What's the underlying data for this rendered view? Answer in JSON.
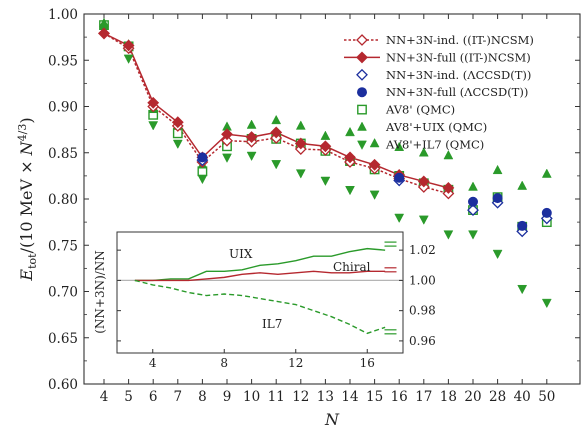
{
  "chart_data": {
    "type": "scatter",
    "xlabel": "N",
    "ylabel": "E_tot/(10 MeV × N^{4/3})",
    "x_tick_labels": [
      "4",
      "5",
      "6",
      "7",
      "8",
      "9",
      "10",
      "11",
      "12",
      "13",
      "14",
      "15",
      "16",
      "17",
      "18",
      "20",
      "28",
      "40",
      "50"
    ],
    "ylim": [
      0.6,
      1.0
    ],
    "y_ticks": [
      "0.60",
      "0.65",
      "0.70",
      "0.75",
      "0.80",
      "0.85",
      "0.90",
      "0.95",
      "1.00"
    ],
    "series": [
      {
        "name": "NN+3N-ind. ((IT-)NCSM)",
        "marker": "diamond-open",
        "line": "dotted",
        "color": "#b5282f",
        "x": [
          4,
          5,
          6,
          7,
          8,
          9,
          10,
          11,
          12,
          13,
          14,
          15,
          16,
          17,
          18
        ],
        "y": [
          0.979,
          0.963,
          0.9,
          0.879,
          0.84,
          0.863,
          0.862,
          0.866,
          0.854,
          0.853,
          0.84,
          0.833,
          0.822,
          0.813,
          0.806
        ]
      },
      {
        "name": "NN+3N-full ((IT-)NCSM)",
        "marker": "diamond-filled",
        "line": "solid",
        "color": "#b5282f",
        "x": [
          4,
          5,
          6,
          7,
          8,
          9,
          10,
          11,
          12,
          13,
          14,
          15,
          16,
          17,
          18
        ],
        "y": [
          0.979,
          0.966,
          0.904,
          0.883,
          0.845,
          0.87,
          0.867,
          0.872,
          0.86,
          0.857,
          0.845,
          0.837,
          0.826,
          0.819,
          0.812
        ]
      },
      {
        "name": "NN+3N-ind. (ΛCCSD(T))",
        "marker": "diamond-open",
        "line": "none",
        "color": "#1c2f9e",
        "x": [
          8,
          16,
          20,
          28,
          40,
          50
        ],
        "y": [
          0.842,
          0.82,
          0.788,
          0.796,
          0.765,
          0.779
        ]
      },
      {
        "name": "NN+3N-full (ΛCCSD(T))",
        "marker": "circle-filled",
        "line": "none",
        "color": "#1c2f9e",
        "x": [
          8,
          16,
          20,
          28,
          40,
          50
        ],
        "y": [
          0.845,
          0.823,
          0.797,
          0.801,
          0.771,
          0.785
        ]
      },
      {
        "name": "AV8' (QMC)",
        "marker": "square-open",
        "line": "none",
        "color": "#2a9a2a",
        "x": [
          4,
          5,
          6,
          7,
          8,
          9,
          10,
          11,
          12,
          13,
          14,
          15,
          16,
          17,
          18,
          20,
          28,
          40,
          50
        ],
        "y": [
          0.988,
          0.965,
          0.891,
          0.871,
          0.83,
          0.857,
          0.865,
          0.865,
          0.86,
          0.852,
          0.841,
          0.832,
          0.825,
          0.817,
          0.81,
          0.788,
          0.802,
          0.77,
          0.775
        ]
      },
      {
        "name": "AV8'+UIX (QMC)",
        "marker": "triangle-up",
        "line": "none",
        "color": "#2a9a2a",
        "x": [
          4,
          5,
          6,
          7,
          8,
          9,
          10,
          11,
          12,
          13,
          14,
          15,
          16,
          17,
          18,
          20,
          28,
          40,
          50
        ],
        "y": [
          0.99,
          0.967,
          0.897,
          0.88,
          0.837,
          0.878,
          0.88,
          0.885,
          0.879,
          0.868,
          0.872,
          0.86,
          0.856,
          0.85,
          0.847,
          0.813,
          0.831,
          0.814,
          0.827
        ]
      },
      {
        "name": "AV8'+IL7 (QMC)",
        "marker": "triangle-down",
        "line": "none",
        "color": "#2a9a2a",
        "x": [
          4,
          5,
          6,
          7,
          8,
          9,
          10,
          11,
          12,
          13,
          14,
          15,
          16,
          17,
          18,
          20,
          28,
          40,
          50
        ],
        "y": [
          0.983,
          0.952,
          0.88,
          0.86,
          0.822,
          0.845,
          0.847,
          0.838,
          0.828,
          0.82,
          0.81,
          0.805,
          0.78,
          0.778,
          0.762,
          0.762,
          0.741,
          0.703,
          0.688
        ]
      }
    ],
    "legend_position": "top-right",
    "inset": {
      "type": "line",
      "ylabel": "(NN+3N)/NN",
      "xlim": [
        2,
        18
      ],
      "x_ticks": [
        4,
        8,
        12,
        16
      ],
      "ylim": [
        0.952,
        1.032
      ],
      "y_ticks": [
        "1.02",
        "1.00",
        "0.98",
        "0.96"
      ],
      "y_tick_values": [
        1.02,
        1.0,
        0.98,
        0.96
      ],
      "reference_line": 1.0,
      "series": [
        {
          "name": "UIX",
          "style": "solid",
          "color": "#2a9a2a",
          "x": [
            3,
            4,
            5,
            6,
            7,
            8,
            9,
            10,
            11,
            12,
            13,
            14,
            15,
            16,
            17
          ],
          "y": [
            1.0,
            1.0,
            1.001,
            1.001,
            1.006,
            1.006,
            1.007,
            1.01,
            1.011,
            1.013,
            1.016,
            1.016,
            1.019,
            1.021,
            1.02
          ]
        },
        {
          "name": "Chiral",
          "style": "solid",
          "color": "#b5282f",
          "x": [
            3,
            4,
            5,
            6,
            7,
            8,
            9,
            10,
            11,
            12,
            13,
            14,
            15,
            16,
            17
          ],
          "y": [
            1.0,
            1.0,
            1.0,
            1.0,
            1.001,
            1.002,
            1.004,
            1.005,
            1.004,
            1.005,
            1.006,
            1.005,
            1.005,
            1.006,
            1.006
          ]
        },
        {
          "name": "IL7",
          "style": "dashed",
          "color": "#2a9a2a",
          "x": [
            3,
            4,
            5,
            6,
            7,
            8,
            9,
            10,
            11,
            12,
            13,
            14,
            15,
            16,
            17
          ],
          "y": [
            1.0,
            0.997,
            0.995,
            0.992,
            0.99,
            0.991,
            0.99,
            0.988,
            0.986,
            0.984,
            0.98,
            0.976,
            0.971,
            0.965,
            0.969
          ]
        }
      ],
      "end_markers": [
        {
          "color": "#2a9a2a",
          "y": 1.024
        },
        {
          "color": "#b5282f",
          "y": 1.007
        },
        {
          "color": "#2a9a2a",
          "y": 0.966
        }
      ]
    }
  }
}
